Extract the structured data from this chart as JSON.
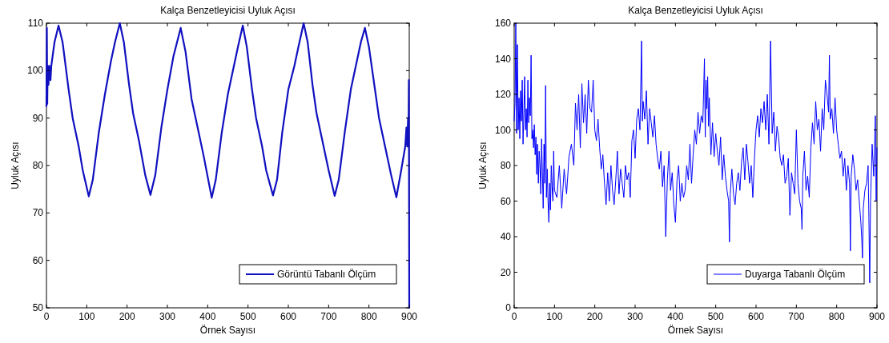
{
  "chart_data": [
    {
      "type": "line",
      "title": "Kalça Benzetleyicisi Uyluk Açısı",
      "xlabel": "Örnek Sayısı",
      "ylabel": "Uyluk Açısı",
      "xlim": [
        0,
        900
      ],
      "xticks": [
        0,
        100,
        200,
        300,
        400,
        500,
        600,
        700,
        800,
        900
      ],
      "ylim": [
        50,
        110
      ],
      "yticks": [
        50,
        60,
        70,
        80,
        90,
        100,
        110
      ],
      "grid": false,
      "legend": "bottom right",
      "line_style": "solid",
      "series": [
        {
          "name": "Görüntü Tabanlı Ölçüm",
          "color": "#1010c0",
          "x": [
            0,
            1,
            2,
            3,
            5,
            7,
            10,
            12,
            20,
            30,
            40,
            55,
            65,
            80,
            90,
            105,
            115,
            130,
            145,
            160,
            170,
            182,
            192,
            205,
            215,
            230,
            245,
            258,
            270,
            285,
            300,
            315,
            333,
            345,
            360,
            375,
            390,
            410,
            420,
            435,
            450,
            465,
            475,
            487,
            497,
            510,
            520,
            535,
            545,
            562,
            572,
            585,
            600,
            615,
            625,
            638,
            648,
            660,
            670,
            685,
            700,
            715,
            725,
            740,
            755,
            770,
            780,
            790,
            800,
            815,
            825,
            840,
            855,
            868,
            880,
            890,
            893,
            895,
            897,
            898,
            899,
            900
          ],
          "values": [
            92.5,
            109,
            93,
            101,
            97,
            101,
            98,
            101,
            106,
            109.5,
            106,
            96,
            90,
            84,
            79,
            73.5,
            77,
            87,
            95,
            102,
            106,
            110,
            106,
            97,
            91,
            85,
            78,
            73.8,
            78,
            88,
            96,
            103,
            109,
            104,
            94,
            88,
            82,
            73.2,
            77,
            87,
            95,
            101,
            105,
            109.5,
            105,
            96,
            90,
            84,
            79,
            73.7,
            77,
            87,
            96,
            101,
            105,
            110,
            106,
            97,
            91,
            85,
            79,
            73.6,
            77,
            87,
            96,
            102,
            106,
            109,
            105,
            96,
            90,
            84,
            78,
            73.3,
            79,
            84,
            88,
            84,
            90,
            84,
            98,
            50
          ]
        }
      ]
    },
    {
      "type": "line",
      "title": "Kalça Benzetleyicisi Uyluk Açısı",
      "xlabel": "Örnek Sayısı",
      "ylabel": "Uyluk Açısı",
      "xlim": [
        0,
        900
      ],
      "xticks": [
        0,
        100,
        200,
        300,
        400,
        500,
        600,
        700,
        800,
        900
      ],
      "ylim": [
        0,
        160
      ],
      "yticks": [
        0,
        20,
        40,
        60,
        80,
        100,
        120,
        140,
        160
      ],
      "grid": false,
      "legend": "bottom right",
      "line_style": "solid",
      "series": [
        {
          "name": "Duyarga Tabanlı Ölçüm",
          "color": "#0000ff",
          "x": [
            0,
            2,
            4,
            6,
            8,
            10,
            12,
            14,
            16,
            18,
            20,
            22,
            24,
            26,
            28,
            30,
            32,
            34,
            36,
            38,
            40,
            42,
            44,
            46,
            48,
            50,
            52,
            54,
            56,
            58,
            60,
            62,
            64,
            66,
            68,
            70,
            72,
            74,
            76,
            78,
            80,
            82,
            84,
            86,
            88,
            90,
            92,
            94,
            96,
            98,
            100,
            106,
            112,
            118,
            124,
            130,
            136,
            142,
            148,
            152,
            156,
            160,
            164,
            168,
            172,
            176,
            180,
            184,
            188,
            192,
            196,
            200,
            204,
            208,
            212,
            216,
            220,
            224,
            228,
            232,
            236,
            240,
            244,
            248,
            252,
            256,
            260,
            264,
            268,
            272,
            276,
            280,
            284,
            288,
            292,
            296,
            300,
            304,
            308,
            312,
            316,
            318,
            320,
            324,
            328,
            332,
            336,
            340,
            344,
            348,
            352,
            356,
            360,
            364,
            368,
            372,
            376,
            380,
            384,
            388,
            392,
            396,
            400,
            404,
            408,
            412,
            416,
            420,
            424,
            428,
            432,
            436,
            440,
            444,
            448,
            452,
            456,
            460,
            464,
            468,
            472,
            474,
            476,
            478,
            480,
            482,
            484,
            488,
            492,
            496,
            500,
            504,
            508,
            512,
            516,
            520,
            524,
            528,
            532,
            534,
            536,
            540,
            544,
            548,
            552,
            556,
            560,
            564,
            568,
            572,
            576,
            580,
            584,
            588,
            592,
            596,
            600,
            604,
            608,
            612,
            616,
            620,
            624,
            628,
            632,
            636,
            640,
            644,
            648,
            652,
            656,
            660,
            664,
            668,
            672,
            676,
            680,
            684,
            688,
            692,
            696,
            700,
            704,
            708,
            712,
            714,
            716,
            720,
            724,
            728,
            732,
            736,
            740,
            744,
            748,
            752,
            756,
            760,
            764,
            768,
            772,
            776,
            780,
            782,
            784,
            788,
            792,
            796,
            800,
            804,
            808,
            812,
            816,
            820,
            824,
            828,
            832,
            834,
            836,
            840,
            844,
            848,
            852,
            856,
            860,
            862,
            864,
            866,
            870,
            874,
            878,
            880,
            882,
            884,
            888,
            892,
            896,
            898,
            900
          ],
          "values": [
            105,
            115,
            160,
            98,
            148,
            100,
            118,
            95,
            122,
            105,
            128,
            92,
            110,
            130,
            100,
            112,
            96,
            128,
            104,
            118,
            108,
            142,
            95,
            100,
            90,
            103,
            86,
            96,
            75,
            92,
            70,
            88,
            80,
            64,
            95,
            76,
            56,
            92,
            70,
            125,
            62,
            78,
            60,
            48,
            70,
            55,
            80,
            68,
            60,
            88,
            66,
            62,
            80,
            56,
            78,
            64,
            85,
            92,
            80,
            115,
            100,
            120,
            90,
            126,
            104,
            120,
            98,
            128,
            112,
            110,
            128,
            100,
            94,
            106,
            90,
            78,
            86,
            70,
            58,
            76,
            60,
            80,
            66,
            58,
            72,
            88,
            64,
            78,
            70,
            62,
            80,
            72,
            76,
            62,
            94,
            100,
            84,
            106,
            112,
            100,
            150,
            105,
            116,
            106,
            122,
            92,
            112,
            104,
            96,
            108,
            92,
            84,
            78,
            88,
            68,
            80,
            40,
            72,
            88,
            66,
            76,
            58,
            48,
            72,
            80,
            60,
            70,
            62,
            66,
            80,
            72,
            92,
            70,
            86,
            100,
            92,
            110,
            98,
            108,
            104,
            140,
            96,
            128,
            112,
            130,
            102,
            118,
            86,
            104,
            85,
            98,
            88,
            80,
            96,
            72,
            86,
            74,
            66,
            60,
            37,
            64,
            78,
            64,
            58,
            70,
            76,
            66,
            82,
            90,
            72,
            92,
            82,
            70,
            80,
            62,
            84,
            100,
            108,
            96,
            112,
            104,
            116,
            100,
            120,
            92,
            150,
            98,
            110,
            88,
            102,
            96,
            84,
            80,
            86,
            70,
            74,
            84,
            52,
            76,
            70,
            64,
            100,
            70,
            60,
            56,
            44,
            74,
            88,
            66,
            74,
            62,
            90,
            104,
            92,
            116,
            100,
            106,
            88,
            112,
            100,
            128,
            120,
            110,
            142,
            106,
            112,
            98,
            118,
            100,
            92,
            84,
            88,
            74,
            84,
            66,
            80,
            70,
            32,
            74,
            86,
            78,
            66,
            72,
            60,
            48,
            40,
            28,
            56,
            66,
            70,
            80,
            50,
            14,
            60,
            92,
            74,
            108,
            60,
            90
          ]
        }
      ]
    }
  ]
}
